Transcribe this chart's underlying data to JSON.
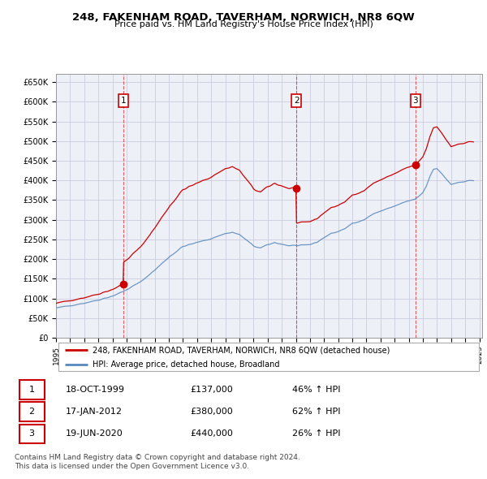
{
  "title": "248, FAKENHAM ROAD, TAVERHAM, NORWICH, NR8 6QW",
  "subtitle": "Price paid vs. HM Land Registry's House Price Index (HPI)",
  "legend_property": "248, FAKENHAM ROAD, TAVERHAM, NORWICH, NR8 6QW (detached house)",
  "legend_hpi": "HPI: Average price, detached house, Broadland",
  "footer1": "Contains HM Land Registry data © Crown copyright and database right 2024.",
  "footer2": "This data is licensed under the Open Government Licence v3.0.",
  "sale_info": [
    {
      "label": "1",
      "date_str": "18-OCT-1999",
      "price_str": "£137,000",
      "pct": "46% ↑ HPI"
    },
    {
      "label": "2",
      "date_str": "17-JAN-2012",
      "price_str": "£380,000",
      "pct": "62% ↑ HPI"
    },
    {
      "label": "3",
      "date_str": "19-JUN-2020",
      "price_str": "£440,000",
      "pct": "26% ↑ HPI"
    }
  ],
  "sale_dates_float": [
    1999.794,
    2012.046,
    2020.463
  ],
  "sale_prices": [
    137000,
    380000,
    440000
  ],
  "property_color": "#cc0000",
  "hpi_color": "#5588bb",
  "vline_color": "#cc0000",
  "ylim": [
    0,
    670000
  ],
  "yticks": [
    0,
    50000,
    100000,
    150000,
    200000,
    250000,
    300000,
    350000,
    400000,
    450000,
    500000,
    550000,
    600000,
    650000
  ],
  "ytick_labels": [
    "£0",
    "£50K",
    "£100K",
    "£150K",
    "£200K",
    "£250K",
    "£300K",
    "£350K",
    "£400K",
    "£450K",
    "£500K",
    "£550K",
    "£600K",
    "£650K"
  ],
  "background_color": "#ffffff",
  "grid_color": "#ccccdd",
  "plot_bg_color": "#eef0f8"
}
